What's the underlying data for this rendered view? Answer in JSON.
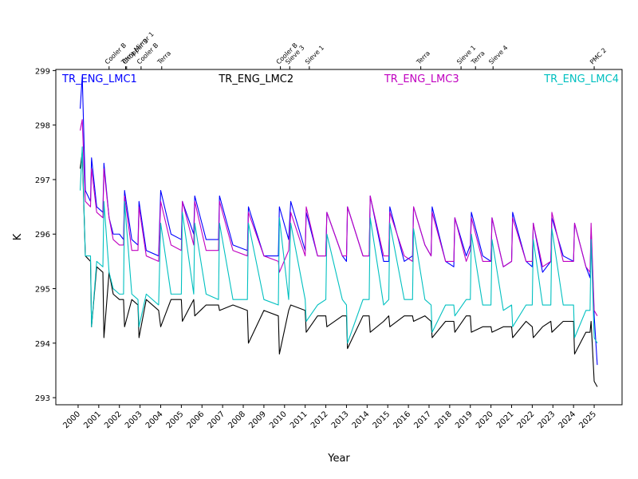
{
  "chart_data": {
    "type": "line",
    "xlabel": "Year",
    "ylabel": "K",
    "xlim": [
      1998.92,
      2026.35
    ],
    "ylim": [
      292.87,
      299.02
    ],
    "xticks": [
      2000,
      2001,
      2002,
      2003,
      2004,
      2005,
      2006,
      2007,
      2008,
      2009,
      2010,
      2011,
      2012,
      2013,
      2014,
      2015,
      2016,
      2017,
      2018,
      2019,
      2020,
      2021,
      2022,
      2023,
      2024,
      2025
    ],
    "yticks": [
      293,
      294,
      295,
      296,
      297,
      298,
      299
    ],
    "events": [
      {
        "x": 2001.5,
        "label": "Cooler B"
      },
      {
        "x": 2002.35,
        "label": "Chopper 3"
      },
      {
        "x": 2002.3,
        "label": "Terra Mirror 1"
      },
      {
        "x": 2003.05,
        "label": "Cooler B"
      },
      {
        "x": 2004.05,
        "label": "Terra"
      },
      {
        "x": 2009.8,
        "label": "Cooler B"
      },
      {
        "x": 2010.25,
        "label": "Sieve 3"
      },
      {
        "x": 2011.2,
        "label": "Sieve 1"
      },
      {
        "x": 2016.6,
        "label": "Terra"
      },
      {
        "x": 2018.55,
        "label": "Sieve 1"
      },
      {
        "x": 2019.25,
        "label": "Terra"
      },
      {
        "x": 2020.1,
        "label": "Sieve 4"
      },
      {
        "x": 2025.0,
        "label": "PMC 2"
      }
    ],
    "x": [
      2000.1,
      2000.2,
      2000.35,
      2000.6,
      2000.65,
      2000.9,
      2001.2,
      2001.25,
      2001.5,
      2001.7,
      2002.0,
      2002.2,
      2002.25,
      2002.6,
      2002.9,
      2002.95,
      2003.3,
      2003.9,
      2004.0,
      2004.5,
      2005.0,
      2005.05,
      2005.6,
      2005.65,
      2006.2,
      2006.8,
      2006.85,
      2007.5,
      2008.2,
      2008.25,
      2009.0,
      2009.7,
      2009.75,
      2010.2,
      2010.3,
      2011.0,
      2011.05,
      2011.6,
      2012.0,
      2012.05,
      2012.8,
      2013.0,
      2013.05,
      2013.8,
      2014.1,
      2014.15,
      2014.8,
      2015.05,
      2015.1,
      2015.8,
      2016.2,
      2016.25,
      2016.8,
      2017.1,
      2017.15,
      2017.8,
      2018.2,
      2018.25,
      2018.8,
      2019.0,
      2019.05,
      2019.6,
      2020.0,
      2020.05,
      2020.6,
      2021.0,
      2021.05,
      2021.7,
      2022.0,
      2022.05,
      2022.5,
      2022.9,
      2022.95,
      2023.5,
      2024.0,
      2024.05,
      2024.6,
      2024.8,
      2024.85,
      2025.0,
      2025.15
    ],
    "series": [
      {
        "name": "TR_ENG_LMC1",
        "color": "#0000ff",
        "values": [
          298.3,
          298.9,
          296.8,
          296.6,
          297.4,
          296.5,
          296.4,
          297.3,
          296.3,
          296.0,
          296.0,
          295.9,
          296.8,
          295.9,
          295.8,
          296.6,
          295.7,
          295.6,
          296.8,
          296.0,
          295.9,
          296.6,
          296.0,
          296.7,
          295.9,
          295.9,
          296.7,
          295.8,
          295.7,
          296.5,
          295.6,
          295.6,
          296.5,
          295.9,
          296.6,
          295.7,
          296.4,
          295.6,
          295.6,
          296.4,
          295.6,
          295.5,
          296.5,
          295.6,
          295.6,
          296.7,
          295.5,
          295.5,
          296.5,
          295.5,
          295.6,
          296.5,
          295.8,
          295.6,
          296.5,
          295.5,
          295.4,
          296.3,
          295.6,
          295.8,
          296.4,
          295.6,
          295.5,
          296.3,
          295.4,
          295.5,
          296.4,
          295.5,
          295.4,
          296.2,
          295.3,
          295.5,
          296.3,
          295.6,
          295.5,
          296.2,
          295.4,
          295.2,
          296.1,
          294.5,
          293.6
        ]
      },
      {
        "name": "TR_ENG_LMC2",
        "color": "#000000",
        "values": [
          297.2,
          297.5,
          295.6,
          295.5,
          294.3,
          295.4,
          295.3,
          294.1,
          295.3,
          294.9,
          294.8,
          294.8,
          294.3,
          294.8,
          294.7,
          294.1,
          294.8,
          294.6,
          294.3,
          294.8,
          294.8,
          294.4,
          294.8,
          294.5,
          294.7,
          294.7,
          294.6,
          294.7,
          294.6,
          294.0,
          294.6,
          294.5,
          293.8,
          294.6,
          294.7,
          294.6,
          294.2,
          294.5,
          294.5,
          294.3,
          294.5,
          294.5,
          293.9,
          294.5,
          294.5,
          294.2,
          294.4,
          294.5,
          294.3,
          294.5,
          294.5,
          294.4,
          294.5,
          294.4,
          294.1,
          294.4,
          294.4,
          294.2,
          294.5,
          294.5,
          294.2,
          294.3,
          294.3,
          294.2,
          294.3,
          294.3,
          294.1,
          294.4,
          294.3,
          294.1,
          294.3,
          294.4,
          294.2,
          294.4,
          294.4,
          293.8,
          294.2,
          294.2,
          294.4,
          293.3,
          293.2
        ]
      },
      {
        "name": "TR_ENG_LMC3",
        "color": "#c000c0",
        "values": [
          297.9,
          298.1,
          296.6,
          296.5,
          297.2,
          296.4,
          296.3,
          297.2,
          296.3,
          295.9,
          295.8,
          295.8,
          296.7,
          295.7,
          295.7,
          296.5,
          295.6,
          295.5,
          296.6,
          295.8,
          295.7,
          296.6,
          295.8,
          296.6,
          295.7,
          295.7,
          296.6,
          295.7,
          295.6,
          296.4,
          295.6,
          295.5,
          295.3,
          295.7,
          296.4,
          295.6,
          296.5,
          295.6,
          295.6,
          296.4,
          295.6,
          295.6,
          296.5,
          295.6,
          295.6,
          296.7,
          295.6,
          295.6,
          296.4,
          295.6,
          295.5,
          296.5,
          295.8,
          295.6,
          296.4,
          295.5,
          295.5,
          296.3,
          295.5,
          295.7,
          296.3,
          295.5,
          295.5,
          296.3,
          295.4,
          295.5,
          296.3,
          295.5,
          295.5,
          296.2,
          295.4,
          295.5,
          296.4,
          295.5,
          295.5,
          296.2,
          295.4,
          295.3,
          296.2,
          294.6,
          294.5
        ]
      },
      {
        "name": "TR_ENG_LMC4",
        "color": "#00c0c0",
        "values": [
          296.8,
          297.6,
          295.6,
          295.6,
          294.3,
          295.5,
          295.4,
          296.6,
          295.3,
          295.0,
          294.9,
          294.9,
          296.6,
          294.9,
          294.8,
          294.3,
          294.9,
          294.7,
          296.2,
          294.9,
          294.9,
          296.4,
          294.9,
          296.2,
          294.9,
          294.8,
          296.2,
          294.8,
          294.8,
          296.2,
          294.8,
          294.7,
          296.3,
          294.8,
          296.2,
          294.8,
          294.4,
          294.7,
          294.8,
          296.0,
          294.8,
          294.7,
          294.0,
          294.8,
          294.8,
          296.3,
          294.7,
          294.8,
          296.2,
          294.8,
          294.8,
          296.1,
          294.8,
          294.7,
          294.2,
          294.7,
          294.7,
          294.5,
          294.8,
          294.8,
          296.0,
          294.7,
          294.7,
          295.9,
          294.6,
          294.7,
          294.3,
          294.7,
          294.7,
          295.9,
          294.7,
          294.7,
          296.1,
          294.7,
          294.7,
          294.1,
          294.6,
          294.6,
          295.9,
          294.1,
          294.0
        ]
      }
    ]
  }
}
